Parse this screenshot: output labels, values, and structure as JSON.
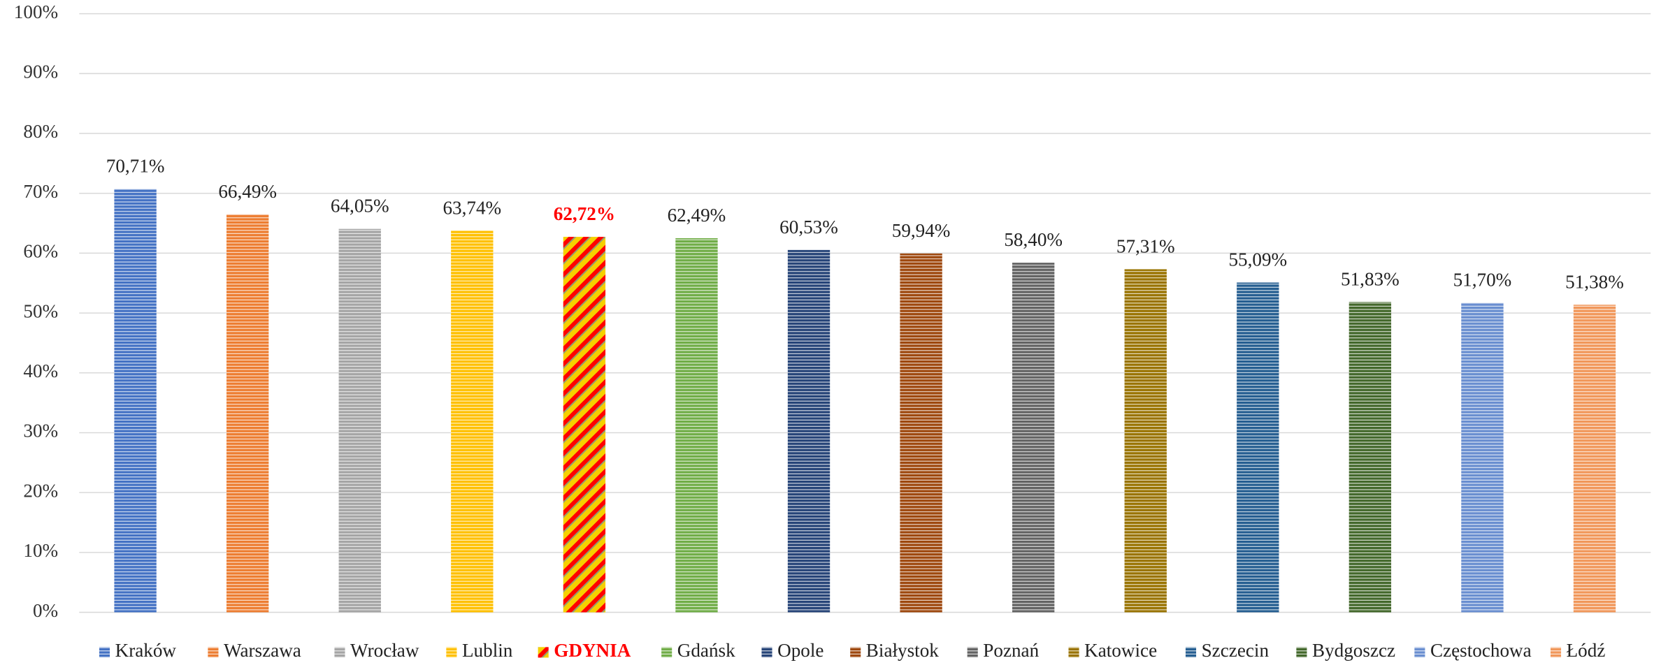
{
  "chart_data": {
    "type": "bar",
    "categories": [
      "Kraków",
      "Warszawa",
      "Wrocław",
      "Lublin",
      "GDYNIA",
      "Gdańsk",
      "Opole",
      "Białystok",
      "Poznań",
      "Katowice",
      "Szczecin",
      "Bydgoszcz",
      "Częstochowa",
      "Łódź"
    ],
    "values": [
      70.71,
      66.49,
      64.05,
      63.74,
      62.72,
      62.49,
      60.53,
      59.94,
      58.4,
      57.31,
      55.09,
      51.83,
      51.7,
      51.38
    ],
    "value_labels": [
      "70,71%",
      "66,49%",
      "64,05%",
      "63,74%",
      "62,72%",
      "62,49%",
      "60,53%",
      "59,94%",
      "58,40%",
      "57,31%",
      "55,09%",
      "51,83%",
      "51,70%",
      "51,38%"
    ],
    "colors": [
      "#4472c4",
      "#ed7d31",
      "#a5a5a5",
      "#ffc000",
      "#ff0000",
      "#70ad47",
      "#264478",
      "#9e480e",
      "#636363",
      "#997300",
      "#255e91",
      "#43682b",
      "#698ed0",
      "#f1975a"
    ],
    "patterns": [
      "horizontal",
      "horizontal",
      "horizontal",
      "horizontal",
      "diagonal",
      "horizontal",
      "horizontal",
      "horizontal",
      "horizontal",
      "horizontal",
      "horizontal",
      "horizontal",
      "horizontal",
      "horizontal"
    ],
    "hatch_color": "#f5d000",
    "ylim": [
      0,
      100
    ],
    "yticks": [
      {
        "value": 0,
        "label": "0%"
      },
      {
        "value": 10,
        "label": "10%"
      },
      {
        "value": 20,
        "label": "20%"
      },
      {
        "value": 30,
        "label": "30%"
      },
      {
        "value": 40,
        "label": "40%"
      },
      {
        "value": 50,
        "label": "50%"
      },
      {
        "value": 60,
        "label": "60%"
      },
      {
        "value": 70,
        "label": "70%"
      },
      {
        "value": 80,
        "label": "80%"
      },
      {
        "value": 90,
        "label": "90%"
      },
      {
        "value": 100,
        "label": "100%"
      }
    ],
    "grid": true,
    "legend": "bottom"
  }
}
